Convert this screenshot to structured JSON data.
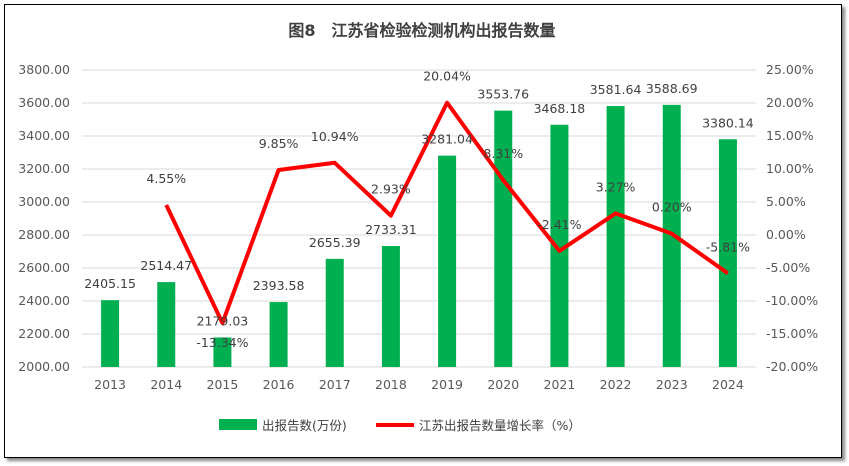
{
  "chart_data": {
    "type": "bar+line",
    "title": "图8　江苏省检验检测机构出报告数量",
    "categories": [
      "2013",
      "2014",
      "2015",
      "2016",
      "2017",
      "2018",
      "2019",
      "2020",
      "2021",
      "2022",
      "2023",
      "2024"
    ],
    "series": [
      {
        "name": "出报告数(万份)",
        "type": "bar",
        "axis": "left",
        "color": "#00B050",
        "values": [
          2405.15,
          2514.47,
          2179.03,
          2393.58,
          2655.39,
          2733.31,
          3281.04,
          3553.76,
          3468.18,
          3581.64,
          3588.69,
          3380.14
        ],
        "labels": [
          "2405.15",
          "2514.47",
          "2179.03",
          "2393.58",
          "2655.39",
          "2733.31",
          "3281.04",
          "3553.76",
          "3468.18",
          "3581.64",
          "3588.69",
          "3380.14"
        ]
      },
      {
        "name": "江苏出报告数量增长率（%）",
        "type": "line",
        "axis": "right",
        "color": "#FF0000",
        "values": [
          null,
          4.55,
          -13.34,
          9.85,
          10.94,
          2.93,
          20.04,
          8.31,
          -2.41,
          3.27,
          0.2,
          -5.81
        ],
        "labels": [
          "",
          "4.55%",
          "-13.34%",
          "9.85%",
          "10.94%",
          "2.93%",
          "20.04%",
          "8.31%",
          "-2.41%",
          "3.27%",
          "0.20%",
          "-5.81%"
        ]
      }
    ],
    "y_left": {
      "range": [
        2000,
        3800
      ],
      "ticks": [
        "2000.00",
        "2200.00",
        "2400.00",
        "2600.00",
        "2800.00",
        "3000.00",
        "3200.00",
        "3400.00",
        "3600.00",
        "3800.00"
      ]
    },
    "y_right": {
      "range": [
        -20,
        25
      ],
      "ticks": [
        "-20.00%",
        "-15.00%",
        "-10.00%",
        "-5.00%",
        "0.00%",
        "5.00%",
        "10.00%",
        "15.00%",
        "20.00%",
        "25.00%"
      ]
    },
    "grid": true,
    "legend": "bottom"
  }
}
